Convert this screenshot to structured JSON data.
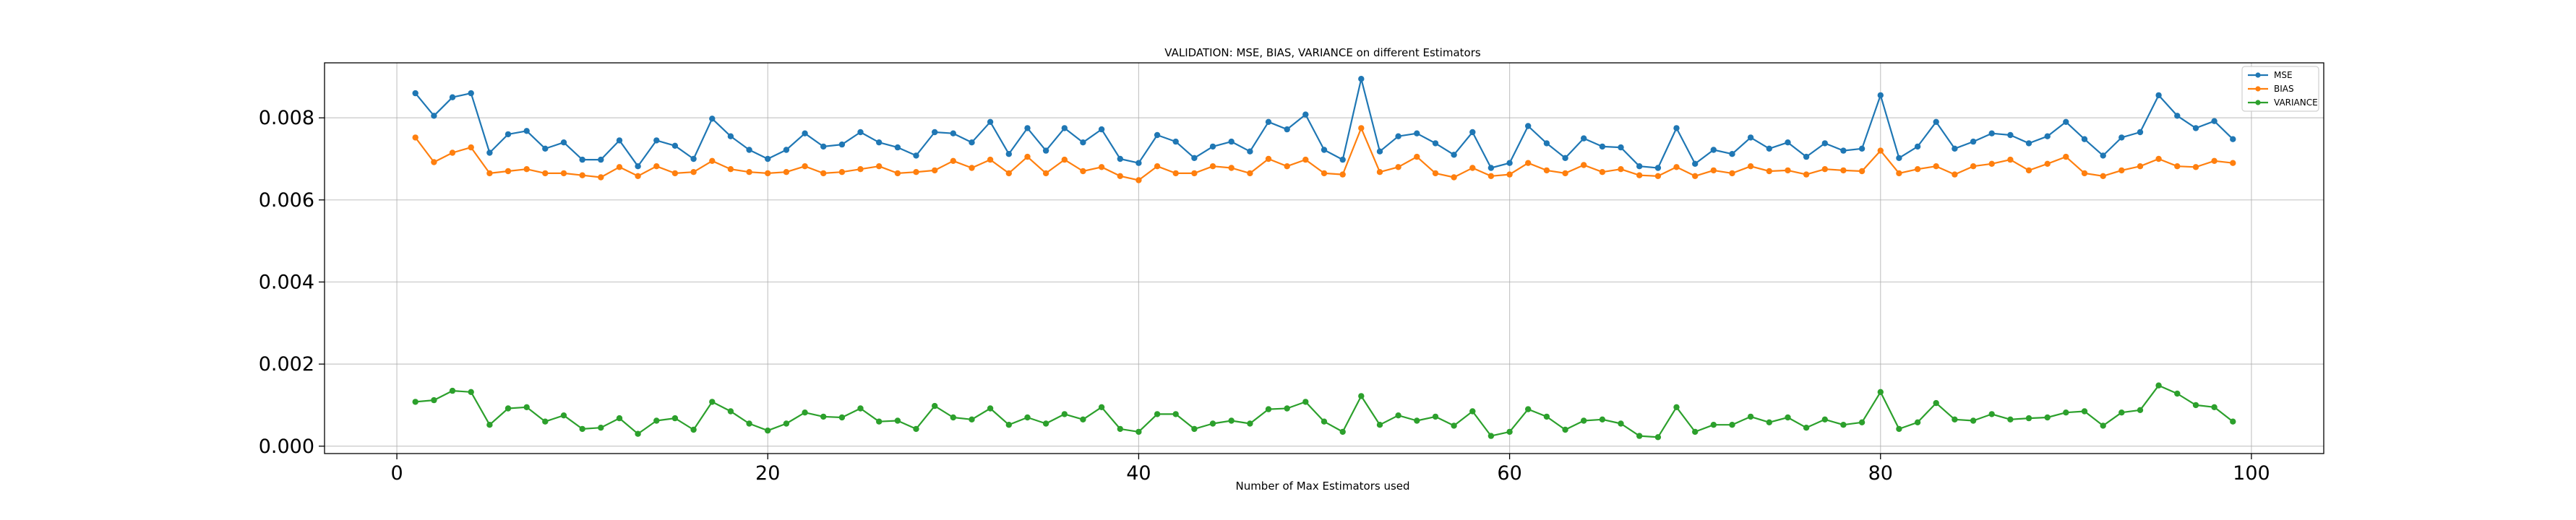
{
  "chart_data": {
    "type": "line",
    "title": "VALIDATION: MSE, BIAS, VARIANCE on different Estimators",
    "xlabel": "Number of Max Estimators used",
    "ylabel": "",
    "xlim": [
      -3.9,
      103.9
    ],
    "ylim": [
      -0.00018,
      0.00934
    ],
    "xticks": [
      0,
      20,
      40,
      60,
      80,
      100
    ],
    "yticks": [
      0.0,
      0.002,
      0.004,
      0.006,
      0.008
    ],
    "ytick_labels": [
      "0.000",
      "0.002",
      "0.004",
      "0.006",
      "0.008"
    ],
    "grid": true,
    "legend_position": "top-right",
    "x": [
      1,
      2,
      3,
      4,
      5,
      6,
      7,
      8,
      9,
      10,
      11,
      12,
      13,
      14,
      15,
      16,
      17,
      18,
      19,
      20,
      21,
      22,
      23,
      24,
      25,
      26,
      27,
      28,
      29,
      30,
      31,
      32,
      33,
      34,
      35,
      36,
      37,
      38,
      39,
      40,
      41,
      42,
      43,
      44,
      45,
      46,
      47,
      48,
      49,
      50,
      51,
      52,
      53,
      54,
      55,
      56,
      57,
      58,
      59,
      60,
      61,
      62,
      63,
      64,
      65,
      66,
      67,
      68,
      69,
      70,
      71,
      72,
      73,
      74,
      75,
      76,
      77,
      78,
      79,
      80,
      81,
      82,
      83,
      84,
      85,
      86,
      87,
      88,
      89,
      90,
      91,
      92,
      93,
      94,
      95,
      96,
      97,
      98,
      99
    ],
    "series": [
      {
        "name": "MSE",
        "color": "#1f77b4",
        "values": [
          0.0086,
          0.00805,
          0.0085,
          0.0086,
          0.00715,
          0.0076,
          0.00768,
          0.00725,
          0.0074,
          0.00698,
          0.00698,
          0.00745,
          0.00682,
          0.00745,
          0.00732,
          0.007,
          0.00798,
          0.00755,
          0.00722,
          0.007,
          0.00722,
          0.00762,
          0.0073,
          0.00735,
          0.00765,
          0.0074,
          0.00728,
          0.00708,
          0.00765,
          0.00762,
          0.0074,
          0.0079,
          0.00712,
          0.00775,
          0.0072,
          0.00775,
          0.0074,
          0.00772,
          0.007,
          0.0069,
          0.00758,
          0.00742,
          0.00702,
          0.0073,
          0.00742,
          0.00718,
          0.0079,
          0.00772,
          0.00808,
          0.00722,
          0.00698,
          0.00895,
          0.00718,
          0.00755,
          0.00762,
          0.00738,
          0.0071,
          0.00765,
          0.00678,
          0.0069,
          0.0078,
          0.00738,
          0.00702,
          0.0075,
          0.0073,
          0.00728,
          0.00682,
          0.00678,
          0.00775,
          0.00688,
          0.00722,
          0.00712,
          0.00752,
          0.00725,
          0.0074,
          0.00705,
          0.00738,
          0.0072,
          0.00725,
          0.00855,
          0.00702,
          0.0073,
          0.0079,
          0.00725,
          0.00742,
          0.00762,
          0.00758,
          0.00738,
          0.00755,
          0.0079,
          0.00748,
          0.00708,
          0.00752,
          0.00765,
          0.00855,
          0.00805,
          0.00775,
          0.00792,
          0.00748
        ]
      },
      {
        "name": "BIAS",
        "color": "#ff7f0e",
        "values": [
          0.00752,
          0.00692,
          0.00715,
          0.00728,
          0.00665,
          0.0067,
          0.00675,
          0.00665,
          0.00665,
          0.0066,
          0.00655,
          0.0068,
          0.00658,
          0.00682,
          0.00665,
          0.00668,
          0.00695,
          0.00675,
          0.00668,
          0.00665,
          0.00668,
          0.00682,
          0.00665,
          0.00668,
          0.00675,
          0.00682,
          0.00665,
          0.00668,
          0.00672,
          0.00695,
          0.00678,
          0.00698,
          0.00665,
          0.00705,
          0.00665,
          0.00698,
          0.0067,
          0.0068,
          0.00658,
          0.00648,
          0.00682,
          0.00665,
          0.00665,
          0.00682,
          0.00678,
          0.00665,
          0.007,
          0.00682,
          0.00698,
          0.00665,
          0.00662,
          0.00775,
          0.00668,
          0.0068,
          0.00705,
          0.00665,
          0.00655,
          0.00678,
          0.00658,
          0.00662,
          0.0069,
          0.00672,
          0.00665,
          0.00685,
          0.00668,
          0.00675,
          0.0066,
          0.00658,
          0.0068,
          0.00658,
          0.00672,
          0.00665,
          0.00682,
          0.0067,
          0.00672,
          0.00662,
          0.00675,
          0.00672,
          0.0067,
          0.0072,
          0.00665,
          0.00675,
          0.00682,
          0.00662,
          0.00682,
          0.00688,
          0.00698,
          0.00672,
          0.00688,
          0.00705,
          0.00665,
          0.00658,
          0.00672,
          0.00682,
          0.007,
          0.00682,
          0.0068,
          0.00695,
          0.0069
        ]
      },
      {
        "name": "VARIANCE",
        "color": "#2ca02c",
        "values": [
          0.00108,
          0.00112,
          0.00135,
          0.00132,
          0.00052,
          0.00092,
          0.00095,
          0.0006,
          0.00075,
          0.00042,
          0.00045,
          0.00068,
          0.0003,
          0.00062,
          0.00068,
          0.0004,
          0.00108,
          0.00085,
          0.00055,
          0.00038,
          0.00055,
          0.00082,
          0.00072,
          0.0007,
          0.00092,
          0.0006,
          0.00062,
          0.00042,
          0.00098,
          0.0007,
          0.00065,
          0.00092,
          0.00052,
          0.0007,
          0.00055,
          0.00078,
          0.00065,
          0.00095,
          0.00042,
          0.00035,
          0.00078,
          0.00078,
          0.00042,
          0.00055,
          0.00062,
          0.00055,
          0.0009,
          0.00092,
          0.00108,
          0.0006,
          0.00035,
          0.00122,
          0.00052,
          0.00075,
          0.00062,
          0.00072,
          0.0005,
          0.00085,
          0.00025,
          0.00035,
          0.0009,
          0.00072,
          0.0004,
          0.00062,
          0.00065,
          0.00055,
          0.00025,
          0.00022,
          0.00095,
          0.00035,
          0.00052,
          0.00052,
          0.00072,
          0.00058,
          0.0007,
          0.00045,
          0.00065,
          0.00052,
          0.00058,
          0.00132,
          0.00042,
          0.00058,
          0.00105,
          0.00065,
          0.00062,
          0.00078,
          0.00065,
          0.00068,
          0.0007,
          0.00082,
          0.00085,
          0.0005,
          0.00082,
          0.00088,
          0.00148,
          0.00128,
          0.001,
          0.00095,
          0.0006
        ]
      }
    ]
  }
}
